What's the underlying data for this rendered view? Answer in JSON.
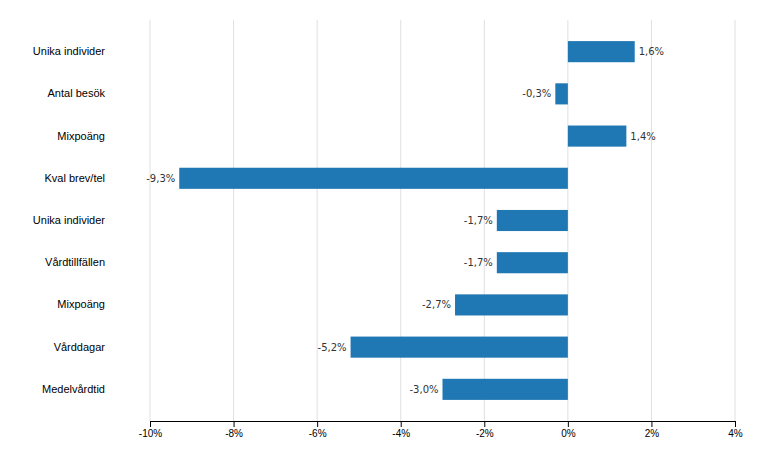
{
  "chart_data": {
    "type": "bar",
    "orientation": "horizontal",
    "categories": [
      "Unika individer",
      "Antal besök",
      "Mixpoäng",
      "Kval brev/tel",
      "Unika individer",
      "Vårdtillfällen",
      "Mixpoäng",
      "Vårddagar",
      "Medelvårdtid"
    ],
    "values": [
      1.6,
      -0.3,
      1.4,
      -9.3,
      -1.7,
      -1.7,
      -2.7,
      -5.2,
      -3.0
    ],
    "value_labels": [
      "1,6%",
      "-0,3%",
      "1,4%",
      "-9,3%",
      "-1,7%",
      "-1,7%",
      "-2,7%",
      "-5,2%",
      "-3,0%"
    ],
    "data_labels": true,
    "xlim": [
      -10,
      4
    ],
    "xticks": [
      {
        "value": -10,
        "label": "-10%"
      },
      {
        "value": -8,
        "label": "-8%"
      },
      {
        "value": -6,
        "label": "-6%"
      },
      {
        "value": -4,
        "label": "-4%"
      },
      {
        "value": -2,
        "label": "-2%"
      },
      {
        "value": 0,
        "label": "0%"
      },
      {
        "value": 2,
        "label": "2%"
      },
      {
        "value": 4,
        "label": "4%"
      }
    ],
    "grid": true
  }
}
